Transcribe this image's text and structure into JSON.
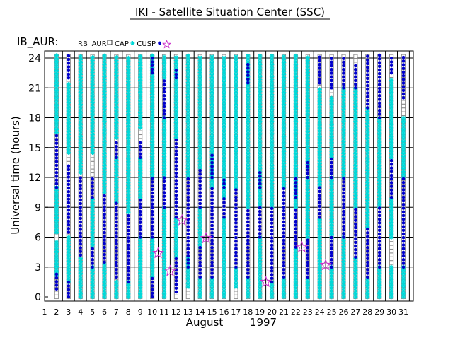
{
  "chart_data": {
    "type": "scatter",
    "title": "IKI - Satellite Situation Center (SSC)",
    "panel_label": "IB_AUR:",
    "legend": [
      {
        "name": "RB",
        "marker": "none",
        "color": "#000000"
      },
      {
        "name": "AUR",
        "marker": "square",
        "color": "#8c8c8c"
      },
      {
        "name": "CAP",
        "marker": "asterisk",
        "color": "#00d8d8"
      },
      {
        "name": "CUSP",
        "marker": "dot",
        "color": "#0000cc"
      },
      {
        "name": "",
        "marker": "star",
        "color": "#cc33cc"
      }
    ],
    "ylabel": "Universal time (hours)",
    "ylim": [
      0,
      24
    ],
    "yticks": [
      0,
      3,
      6,
      9,
      12,
      15,
      18,
      21,
      24
    ],
    "xlim": [
      1,
      32
    ],
    "xticks": [
      "1",
      "2",
      "3",
      "4",
      "5",
      "6",
      "7",
      "8",
      "9",
      "10",
      "11",
      "12",
      "13",
      "14",
      "15",
      "16",
      "17",
      "18",
      "19",
      "20",
      "21",
      "22",
      "23",
      "24",
      "25",
      "26",
      "27",
      "28",
      "29",
      "30",
      "31"
    ],
    "xlabel_month": "August",
    "xlabel_year": "1997",
    "grid": true,
    "days": [
      {
        "day": 2,
        "segs": [
          [
            "AUR",
            0,
            24.3
          ],
          [
            "CAP",
            2.2,
            5.5
          ],
          [
            "CAP",
            6.5,
            11
          ],
          [
            "CAP",
            16.5,
            24.3
          ],
          [
            "CUSP",
            0.8,
            2.5
          ],
          [
            "CUSP",
            11,
            16.5
          ]
        ]
      },
      {
        "day": 3,
        "segs": [
          [
            "AUR",
            0,
            24.3
          ],
          [
            "CAP",
            1.5,
            6
          ],
          [
            "CAP",
            14.5,
            21.5
          ],
          [
            "CUSP",
            0,
            1.5
          ],
          [
            "CUSP",
            6.5,
            13.5
          ],
          [
            "CUSP",
            22,
            24.3
          ]
        ]
      },
      {
        "day": 4,
        "segs": [
          [
            "AUR",
            0,
            24.3
          ],
          [
            "CAP",
            0,
            4
          ],
          [
            "CAP",
            12.5,
            24.3
          ],
          [
            "CUSP",
            4.2,
            12
          ]
        ]
      },
      {
        "day": 5,
        "segs": [
          [
            "AUR",
            0,
            24.3
          ],
          [
            "CAP",
            0,
            3
          ],
          [
            "CAP",
            5,
            10
          ],
          [
            "CAP",
            14.5,
            24.3
          ],
          [
            "CUSP",
            3,
            5
          ],
          [
            "CUSP",
            10,
            12
          ]
        ]
      },
      {
        "day": 6,
        "segs": [
          [
            "AUR",
            0,
            24.3
          ],
          [
            "CAP",
            0,
            3.5
          ],
          [
            "CAP",
            10.5,
            24.3
          ],
          [
            "CUSP",
            3.5,
            10.5
          ]
        ]
      },
      {
        "day": 7,
        "segs": [
          [
            "AUR",
            0,
            24.3
          ],
          [
            "CAP",
            0,
            1.5
          ],
          [
            "CAP",
            9.5,
            14
          ],
          [
            "CAP",
            16,
            24.3
          ],
          [
            "CUSP",
            2,
            9.5
          ],
          [
            "CUSP",
            14,
            15.5
          ]
        ]
      },
      {
        "day": 8,
        "segs": [
          [
            "AUR",
            0,
            24.3
          ],
          [
            "CAP",
            0,
            1.5
          ],
          [
            "CAP",
            8.5,
            24.3
          ],
          [
            "CUSP",
            1.5,
            8.5
          ]
        ]
      },
      {
        "day": 9,
        "segs": [
          [
            "AUR",
            0,
            24.3
          ],
          [
            "CAP",
            0,
            6
          ],
          [
            "CAP",
            10,
            14
          ],
          [
            "CAP",
            17,
            24.3
          ],
          [
            "CUSP",
            6,
            10
          ],
          [
            "CUSP",
            14,
            15.5
          ]
        ]
      },
      {
        "day": 10,
        "segs": [
          [
            "AUR",
            0,
            24.3
          ],
          [
            "CAP",
            2,
            6
          ],
          [
            "CAP",
            12,
            24.3
          ],
          [
            "CUSP",
            0,
            2
          ],
          [
            "CUSP",
            6,
            12
          ],
          [
            "CUSP",
            22.5,
            24.3
          ]
        ]
      },
      {
        "day": 11,
        "segs": [
          [
            "AUR",
            0,
            24.3
          ],
          [
            "CAP",
            0,
            9
          ],
          [
            "CAP",
            12,
            18
          ],
          [
            "CAP",
            22,
            24.3
          ],
          [
            "CUSP",
            9,
            12
          ],
          [
            "CUSP",
            18,
            22
          ]
        ]
      },
      {
        "day": 12,
        "segs": [
          [
            "AUR",
            0,
            24.3
          ],
          [
            "CAP",
            4,
            8
          ],
          [
            "CAP",
            16,
            24.3
          ],
          [
            "CUSP",
            0.5,
            4
          ],
          [
            "CUSP",
            8,
            16
          ],
          [
            "CUSP",
            22,
            23
          ]
        ]
      },
      {
        "day": 13,
        "segs": [
          [
            "AUR",
            0,
            24.3
          ],
          [
            "CAP",
            1,
            4
          ],
          [
            "CAP",
            12,
            24.3
          ],
          [
            "CUSP",
            3,
            12
          ]
        ]
      },
      {
        "day": 14,
        "segs": [
          [
            "AUR",
            0,
            24.3
          ],
          [
            "CAP",
            0,
            2
          ],
          [
            "CAP",
            5,
            9
          ],
          [
            "CAP",
            13,
            24.3
          ],
          [
            "CUSP",
            2,
            5
          ],
          [
            "CUSP",
            9,
            13
          ]
        ]
      },
      {
        "day": 15,
        "segs": [
          [
            "AUR",
            0,
            24.3
          ],
          [
            "CAP",
            0,
            2
          ],
          [
            "CAP",
            11,
            24.3
          ],
          [
            "CUSP",
            2,
            11
          ],
          [
            "CUSP",
            12,
            14.5
          ]
        ]
      },
      {
        "day": 16,
        "segs": [
          [
            "AUR",
            0,
            24.3
          ],
          [
            "CAP",
            0,
            8
          ],
          [
            "CAP",
            10,
            24.3
          ],
          [
            "CUSP",
            8,
            10
          ],
          [
            "CUSP",
            11,
            12
          ]
        ]
      },
      {
        "day": 17,
        "segs": [
          [
            "AUR",
            0,
            24.3
          ],
          [
            "CAP",
            1,
            3
          ],
          [
            "CAP",
            11,
            24.3
          ],
          [
            "CUSP",
            3,
            11
          ]
        ]
      },
      {
        "day": 18,
        "segs": [
          [
            "AUR",
            0,
            24.3
          ],
          [
            "CAP",
            0,
            2
          ],
          [
            "CAP",
            9,
            24.3
          ],
          [
            "CUSP",
            2,
            9
          ],
          [
            "CUSP",
            21.5,
            23.5
          ]
        ]
      },
      {
        "day": 19,
        "segs": [
          [
            "AUR",
            0,
            24.3
          ],
          [
            "CAP",
            0,
            6
          ],
          [
            "CAP",
            9,
            24.3
          ],
          [
            "CUSP",
            6,
            9
          ],
          [
            "CUSP",
            11,
            12.5
          ]
        ]
      },
      {
        "day": 20,
        "segs": [
          [
            "AUR",
            0,
            24.3
          ],
          [
            "CAP",
            0,
            1.5
          ],
          [
            "CAP",
            9,
            24.3
          ],
          [
            "CUSP",
            1.5,
            9
          ]
        ]
      },
      {
        "day": 21,
        "segs": [
          [
            "AUR",
            0,
            24.3
          ],
          [
            "CAP",
            0,
            2
          ],
          [
            "CAP",
            11,
            24.3
          ],
          [
            "CUSP",
            2,
            11
          ]
        ]
      },
      {
        "day": 22,
        "segs": [
          [
            "AUR",
            0,
            24.3
          ],
          [
            "CAP",
            0,
            5
          ],
          [
            "CAP",
            9,
            24.3
          ],
          [
            "CUSP",
            5,
            9
          ],
          [
            "CUSP",
            10,
            12
          ]
        ]
      },
      {
        "day": 23,
        "segs": [
          [
            "AUR",
            0,
            24.3
          ],
          [
            "CAP",
            0,
            2
          ],
          [
            "CAP",
            6,
            12
          ],
          [
            "CAP",
            13,
            24.3
          ],
          [
            "CUSP",
            2,
            6
          ],
          [
            "CUSP",
            12,
            13.5
          ]
        ]
      },
      {
        "day": 24,
        "segs": [
          [
            "AUR",
            0,
            24.3
          ],
          [
            "CAP",
            0,
            8
          ],
          [
            "CAP",
            11,
            21
          ],
          [
            "CUSP",
            8,
            11
          ],
          [
            "CUSP",
            21.5,
            24.3
          ]
        ]
      },
      {
        "day": 25,
        "segs": [
          [
            "AUR",
            0,
            24.3
          ],
          [
            "CAP",
            0,
            3
          ],
          [
            "CAP",
            6,
            12
          ],
          [
            "CAP",
            14,
            20
          ],
          [
            "CUSP",
            3,
            6
          ],
          [
            "CUSP",
            12,
            14
          ],
          [
            "CUSP",
            21,
            24.3
          ]
        ]
      },
      {
        "day": 26,
        "segs": [
          [
            "AUR",
            0,
            24.3
          ],
          [
            "CAP",
            0,
            6
          ],
          [
            "CAP",
            12,
            21
          ],
          [
            "CUSP",
            6,
            12
          ],
          [
            "CUSP",
            21,
            24.3
          ]
        ]
      },
      {
        "day": 27,
        "segs": [
          [
            "AUR",
            0,
            24.3
          ],
          [
            "CAP",
            0,
            4
          ],
          [
            "CAP",
            9,
            21
          ],
          [
            "CUSP",
            4,
            9
          ],
          [
            "CUSP",
            21,
            23.5
          ]
        ]
      },
      {
        "day": 28,
        "segs": [
          [
            "AUR",
            0,
            24.3
          ],
          [
            "CAP",
            0,
            2
          ],
          [
            "CAP",
            7,
            19
          ],
          [
            "CUSP",
            2,
            7
          ],
          [
            "CUSP",
            19,
            24.3
          ]
        ]
      },
      {
        "day": 29,
        "segs": [
          [
            "AUR",
            0,
            24.3
          ],
          [
            "CAP",
            0,
            3
          ],
          [
            "CAP",
            9,
            18
          ],
          [
            "CUSP",
            3,
            9
          ],
          [
            "CUSP",
            18,
            24.3
          ]
        ]
      },
      {
        "day": 30,
        "segs": [
          [
            "AUR",
            0,
            24.3
          ],
          [
            "CAP",
            0,
            3
          ],
          [
            "CAP",
            6,
            10
          ],
          [
            "CAP",
            14,
            22
          ],
          [
            "CUSP",
            10,
            14
          ],
          [
            "CUSP",
            22.5,
            24.3
          ]
        ]
      },
      {
        "day": 31,
        "segs": [
          [
            "AUR",
            0,
            24.3
          ],
          [
            "CAP",
            0,
            3
          ],
          [
            "CAP",
            12,
            18
          ],
          [
            "CUSP",
            3,
            12
          ],
          [
            "CUSP",
            20,
            24.3
          ]
        ]
      }
    ],
    "stars": [
      {
        "day": 10,
        "hour": 4.4
      },
      {
        "day": 11,
        "hour": 2.6
      },
      {
        "day": 12,
        "hour": 7.7
      },
      {
        "day": 14,
        "hour": 5.9
      },
      {
        "day": 19,
        "hour": 1.5
      },
      {
        "day": 22,
        "hour": 5.0
      },
      {
        "day": 24,
        "hour": 3.2
      }
    ],
    "legend_star_note": "CUSP"
  }
}
